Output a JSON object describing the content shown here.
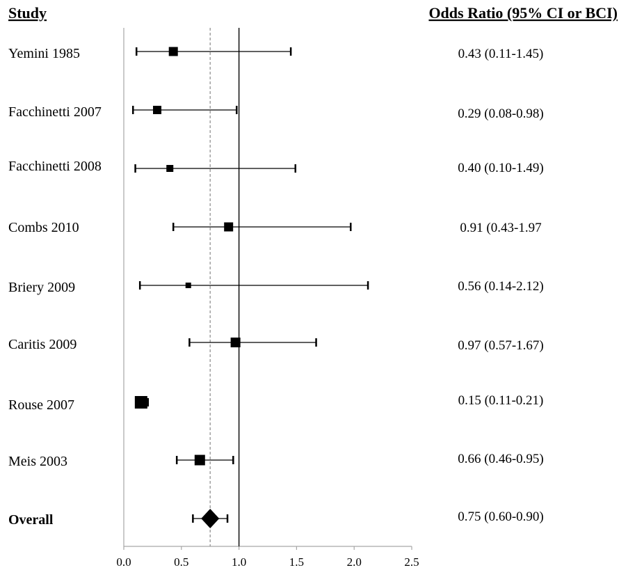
{
  "headers": {
    "study": "Study",
    "odds_ratio": "Odds Ratio (95% CI or BCI)"
  },
  "chart_data": {
    "type": "forest",
    "xlim": [
      0,
      2.5
    ],
    "xticks": [
      "0.0",
      "0.5",
      "1.0",
      "1.5",
      "2.0",
      "2.5"
    ],
    "reference_line": 1.0,
    "overall_line": 0.75,
    "grid": false,
    "studies": [
      {
        "name": "Yemini 1985",
        "or": 0.43,
        "lo": 0.11,
        "hi": 1.45,
        "text": "0.43 (0.11-1.45)"
      },
      {
        "name": "Facchinetti 2007",
        "or": 0.29,
        "lo": 0.08,
        "hi": 0.98,
        "text": "0.29 (0.08-0.98)"
      },
      {
        "name": "Facchinetti 2008",
        "or": 0.4,
        "lo": 0.1,
        "hi": 1.49,
        "text": "0.40 (0.10-1.49)"
      },
      {
        "name": "Combs 2010",
        "or": 0.91,
        "lo": 0.43,
        "hi": 1.97,
        "text": "0.91 (0.43-1.97"
      },
      {
        "name": "Briery 2009",
        "or": 0.56,
        "lo": 0.14,
        "hi": 2.12,
        "text": "0.56 (0.14-2.12)"
      },
      {
        "name": "Caritis 2009",
        "or": 0.97,
        "lo": 0.57,
        "hi": 1.67,
        "text": "0.97 (0.57-1.67)"
      },
      {
        "name": "Rouse 2007",
        "or": 0.15,
        "lo": 0.11,
        "hi": 0.21,
        "text": "0.15 (0.11-0.21)"
      },
      {
        "name": "Meis 2003",
        "or": 0.66,
        "lo": 0.46,
        "hi": 0.95,
        "text": "0.66 (0.46-0.95)"
      }
    ],
    "overall": {
      "name": "Overall",
      "or": 0.75,
      "lo": 0.6,
      "hi": 0.9,
      "text": "0.75 (0.60-0.90)"
    }
  }
}
